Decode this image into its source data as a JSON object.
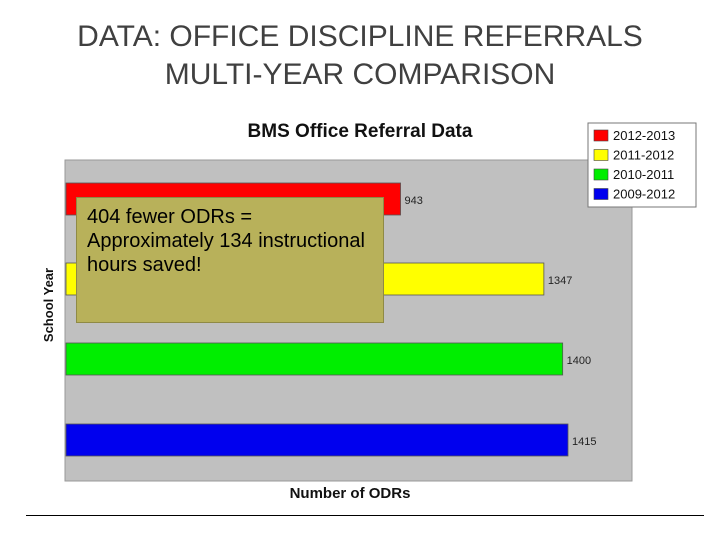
{
  "slide": {
    "title_line1": "DATA:  OFFICE DISCIPLINE REFERRALS",
    "title_line2": "MULTI-YEAR COMPARISON"
  },
  "callout": {
    "text": "404 fewer ODRs = Approximately 134 instructional hours saved!"
  },
  "chart_data": {
    "type": "bar",
    "orientation": "horizontal",
    "title": "BMS Office Referral Data",
    "xlabel": "Number of ODRs",
    "ylabel": "School Year",
    "xlim": [
      0,
      1500
    ],
    "grid": false,
    "legend_position": "top-right",
    "series": [
      {
        "name": "2012-2013",
        "value": 943,
        "color": "#ff0000"
      },
      {
        "name": "2011-2012",
        "value": 1347,
        "color": "#ffff00"
      },
      {
        "name": "2010-2011",
        "value": 1400,
        "color": "#00ee00"
      },
      {
        "name": "2009-2012",
        "value": 1415,
        "color": "#0000ee"
      }
    ],
    "plot_background": "#c0c0c0"
  }
}
